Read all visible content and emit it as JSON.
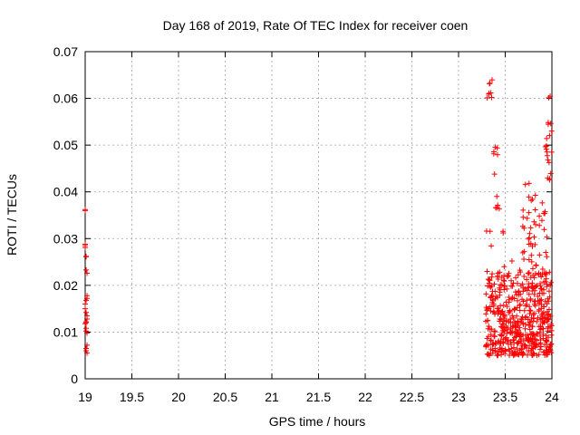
{
  "chart_data": {
    "type": "scatter",
    "title": "Day 168 of 2019, Rate Of TEC Index for receiver coen",
    "xlabel": "GPS time / hours",
    "ylabel": "ROTI / TECUs",
    "xlim": [
      19,
      24
    ],
    "ylim": [
      0,
      0.07
    ],
    "x_ticks": [
      "19",
      "19.5",
      "20",
      "20.5",
      "21",
      "21.5",
      "22",
      "22.5",
      "23",
      "23.5",
      "24"
    ],
    "y_ticks": [
      "0",
      "0.01",
      "0.02",
      "0.03",
      "0.04",
      "0.05",
      "0.06",
      "0.07"
    ],
    "grid": true,
    "marker": "+",
    "color": "#ff0000",
    "series": [
      {
        "x": [
          19.0,
          19.0,
          19.0,
          19.0,
          19.0,
          19.01,
          19.01,
          19.01,
          19.02,
          19.02,
          19.02,
          19.01,
          19.0,
          19.0,
          19.01,
          19.02,
          19.02,
          19.01,
          19.01,
          19.0,
          19.01,
          19.01,
          19.02,
          19.02,
          19.01,
          19.01,
          19.02
        ],
        "y": [
          0.0362,
          0.036,
          0.0288,
          0.0285,
          0.0281,
          0.0262,
          0.0261,
          0.0233,
          0.0226,
          0.0178,
          0.0172,
          0.0168,
          0.016,
          0.015,
          0.0142,
          0.0135,
          0.0128,
          0.0122,
          0.012,
          0.0118,
          0.0108,
          0.0102,
          0.0098,
          0.0072,
          0.0065,
          0.006,
          0.0055
        ]
      }
    ]
  }
}
